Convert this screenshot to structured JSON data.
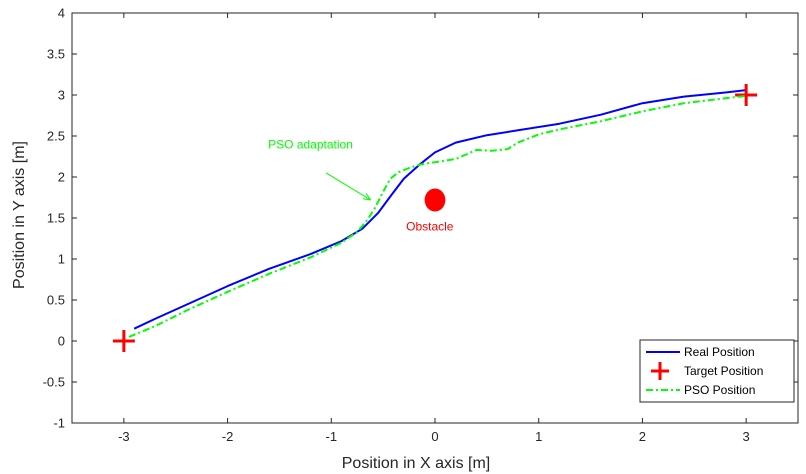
{
  "chart_data": {
    "type": "line",
    "xlabel": "Position in X axis [m]",
    "ylabel": "Position in Y axis [m]",
    "xlim": [
      -3.5,
      3.5
    ],
    "ylim": [
      -1,
      4
    ],
    "xticks": [
      -3,
      -2,
      -1,
      0,
      1,
      2,
      3
    ],
    "yticks": [
      -1,
      -0.5,
      0,
      0.5,
      1,
      1.5,
      2,
      2.5,
      3,
      3.5,
      4
    ],
    "xtick_labels": [
      "-3",
      "-2",
      "-1",
      "0",
      "1",
      "2",
      "3"
    ],
    "ytick_labels": [
      "-1",
      "-0.5",
      "0",
      "0.5",
      "1",
      "1.5",
      "2",
      "2.5",
      "3",
      "3.5",
      "4"
    ],
    "grid": false,
    "legend_position": "bottom-right",
    "series": [
      {
        "name": "Real Position",
        "color": "#0000ff",
        "style": "solid",
        "points": [
          [
            -2.9,
            0.15
          ],
          [
            -2.7,
            0.27
          ],
          [
            -2.4,
            0.44
          ],
          [
            -2.0,
            0.67
          ],
          [
            -1.6,
            0.88
          ],
          [
            -1.2,
            1.06
          ],
          [
            -0.9,
            1.22
          ],
          [
            -0.7,
            1.37
          ],
          [
            -0.55,
            1.56
          ],
          [
            -0.42,
            1.78
          ],
          [
            -0.3,
            1.98
          ],
          [
            -0.15,
            2.15
          ],
          [
            0.0,
            2.3
          ],
          [
            0.2,
            2.42
          ],
          [
            0.5,
            2.51
          ],
          [
            0.8,
            2.57
          ],
          [
            1.2,
            2.65
          ],
          [
            1.6,
            2.76
          ],
          [
            2.0,
            2.9
          ],
          [
            2.4,
            2.98
          ],
          [
            2.8,
            3.03
          ],
          [
            3.0,
            3.06
          ]
        ]
      },
      {
        "name": "Target Position",
        "color": "#ff0000",
        "style": "plus",
        "points": [
          [
            -3,
            0
          ],
          [
            3,
            3
          ]
        ]
      },
      {
        "name": "PSO Position",
        "color": "#00ff00",
        "style": "dashdot",
        "points": [
          [
            -2.95,
            0.05
          ],
          [
            -2.7,
            0.18
          ],
          [
            -2.4,
            0.37
          ],
          [
            -2.0,
            0.6
          ],
          [
            -1.6,
            0.82
          ],
          [
            -1.2,
            1.02
          ],
          [
            -0.9,
            1.2
          ],
          [
            -0.75,
            1.33
          ],
          [
            -0.65,
            1.48
          ],
          [
            -0.58,
            1.62
          ],
          [
            -0.5,
            1.82
          ],
          [
            -0.43,
            1.98
          ],
          [
            -0.35,
            2.06
          ],
          [
            -0.25,
            2.11
          ],
          [
            -0.15,
            2.15
          ],
          [
            0.0,
            2.18
          ],
          [
            0.2,
            2.22
          ],
          [
            0.4,
            2.33
          ],
          [
            0.55,
            2.32
          ],
          [
            0.7,
            2.34
          ],
          [
            0.8,
            2.42
          ],
          [
            1.0,
            2.52
          ],
          [
            1.2,
            2.58
          ],
          [
            1.6,
            2.68
          ],
          [
            2.0,
            2.8
          ],
          [
            2.4,
            2.9
          ],
          [
            2.8,
            2.96
          ],
          [
            3.0,
            2.99
          ]
        ]
      }
    ],
    "obstacle": {
      "x": 0.0,
      "y": 1.72,
      "rx": 0.1,
      "ry": 0.14,
      "color": "#ff0000",
      "label": "Obstacle",
      "label_x": -0.05,
      "label_y": 1.35
    },
    "annotation": {
      "text": "PSO adaptation",
      "color": "#00ff00",
      "text_x": -1.2,
      "text_y": 2.35,
      "arrow_from_x": -1.05,
      "arrow_from_y": 2.05,
      "arrow_to_x": -0.62,
      "arrow_to_y": 1.72
    }
  }
}
